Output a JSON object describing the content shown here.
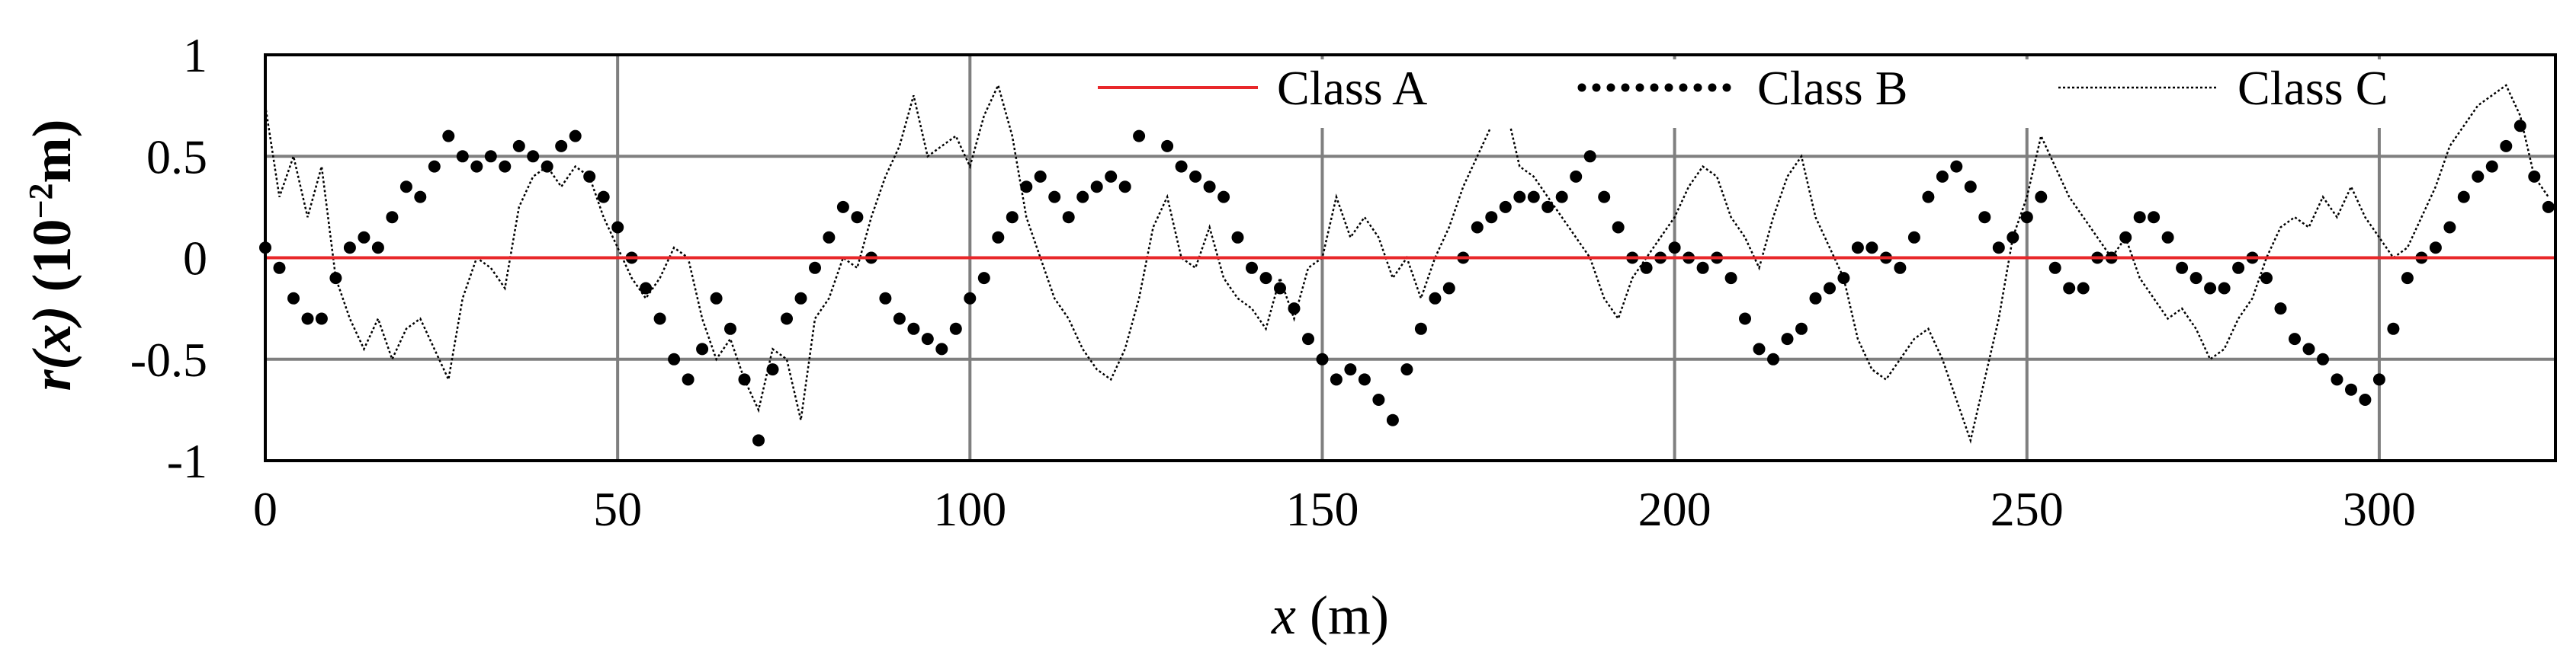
{
  "chart_data": {
    "type": "line",
    "xlabel": {
      "var": "x",
      "unit": " (m)"
    },
    "ylabel": {
      "var": "r(x)",
      "unit": " (10",
      "exp": "−2",
      "unit_end": "m)"
    },
    "xlim": [
      0,
      325
    ],
    "ylim": [
      -1,
      1
    ],
    "x_ticks": [
      0,
      50,
      100,
      150,
      200,
      250,
      300
    ],
    "x_tick_labels": [
      "0",
      "50",
      "100",
      "150",
      "200",
      "250",
      "300"
    ],
    "y_ticks": [
      1,
      0.5,
      0,
      -0.5,
      -1
    ],
    "y_tick_labels": [
      "1",
      "0.5",
      "0",
      "-0.5",
      "-1"
    ],
    "grid": true,
    "legend_position": "top",
    "colors": {
      "class_a": "#e8272a",
      "class_b": "#000000",
      "class_c": "#000000",
      "grid": "#7f7f7f"
    },
    "series": [
      {
        "name": "Class A",
        "style": "solid-red-line",
        "x": [
          0,
          325
        ],
        "y": [
          0,
          0
        ]
      },
      {
        "name": "Class B",
        "style": "dots",
        "x": [
          0,
          2,
          4,
          6,
          8,
          10,
          12,
          14,
          16,
          18,
          20,
          22,
          24,
          26,
          28,
          30,
          32,
          34,
          36,
          38,
          40,
          42,
          44,
          46,
          48,
          50,
          52,
          54,
          56,
          58,
          60,
          62,
          64,
          66,
          68,
          70,
          72,
          74,
          76,
          78,
          80,
          82,
          84,
          86,
          88,
          90,
          92,
          94,
          96,
          98,
          100,
          102,
          104,
          106,
          108,
          110,
          112,
          114,
          116,
          118,
          120,
          122,
          124,
          126,
          128,
          130,
          132,
          134,
          136,
          138,
          140,
          142,
          144,
          146,
          148,
          150,
          152,
          154,
          156,
          158,
          160,
          162,
          164,
          166,
          168,
          170,
          172,
          174,
          176,
          178,
          180,
          182,
          184,
          186,
          188,
          190,
          192,
          194,
          196,
          198,
          200,
          202,
          204,
          206,
          208,
          210,
          212,
          214,
          216,
          218,
          220,
          222,
          224,
          226,
          228,
          230,
          232,
          234,
          236,
          238,
          240,
          242,
          244,
          246,
          248,
          250,
          252,
          254,
          256,
          258,
          260,
          262,
          264,
          266,
          268,
          270,
          272,
          274,
          276,
          278,
          280,
          282,
          284,
          286,
          288,
          290,
          292,
          294,
          296,
          298,
          300,
          302,
          304,
          306,
          308,
          310,
          312,
          314,
          316,
          318,
          320,
          322,
          324
        ],
        "y": [
          0.05,
          -0.05,
          -0.2,
          -0.3,
          -0.3,
          -0.1,
          0.05,
          0.1,
          0.05,
          0.2,
          0.35,
          0.3,
          0.45,
          0.6,
          0.5,
          0.45,
          0.5,
          0.45,
          0.55,
          0.5,
          0.45,
          0.55,
          0.6,
          0.4,
          0.3,
          0.15,
          0.0,
          -0.15,
          -0.3,
          -0.5,
          -0.6,
          -0.45,
          -0.2,
          -0.35,
          -0.6,
          -0.9,
          -0.55,
          -0.3,
          -0.2,
          -0.05,
          0.1,
          0.25,
          0.2,
          0.0,
          -0.2,
          -0.3,
          -0.35,
          -0.4,
          -0.45,
          -0.35,
          -0.2,
          -0.1,
          0.1,
          0.2,
          0.35,
          0.4,
          0.3,
          0.2,
          0.3,
          0.35,
          0.4,
          0.35,
          0.6,
          0.7,
          0.55,
          0.45,
          0.4,
          0.35,
          0.3,
          0.1,
          -0.05,
          -0.1,
          -0.15,
          -0.25,
          -0.4,
          -0.5,
          -0.6,
          -0.55,
          -0.6,
          -0.7,
          -0.8,
          -0.55,
          -0.35,
          -0.2,
          -0.15,
          0.0,
          0.15,
          0.2,
          0.25,
          0.3,
          0.3,
          0.25,
          0.3,
          0.4,
          0.5,
          0.3,
          0.15,
          0.0,
          -0.05,
          0.0,
          0.05,
          0.0,
          -0.05,
          0.0,
          -0.1,
          -0.3,
          -0.45,
          -0.5,
          -0.4,
          -0.35,
          -0.2,
          -0.15,
          -0.1,
          0.05,
          0.05,
          0.0,
          -0.05,
          0.1,
          0.3,
          0.4,
          0.45,
          0.35,
          0.2,
          0.05,
          0.1,
          0.2,
          0.3,
          -0.05,
          -0.15,
          -0.15,
          0.0,
          0.0,
          0.1,
          0.2,
          0.2,
          0.1,
          -0.05,
          -0.1,
          -0.15,
          -0.15,
          -0.05,
          0.0,
          -0.1,
          -0.25,
          -0.4,
          -0.45,
          -0.5,
          -0.6,
          -0.65,
          -0.7,
          -0.6,
          -0.35,
          -0.1,
          0.0,
          0.05,
          0.15,
          0.3,
          0.4,
          0.45,
          0.55,
          0.65,
          0.4,
          0.25
        ]
      },
      {
        "name": "Class C",
        "style": "thin-dotted-line",
        "x": [
          0,
          2,
          4,
          6,
          8,
          10,
          12,
          14,
          16,
          18,
          20,
          22,
          24,
          26,
          28,
          30,
          32,
          34,
          36,
          38,
          40,
          42,
          44,
          46,
          48,
          50,
          52,
          54,
          56,
          58,
          60,
          62,
          64,
          66,
          68,
          70,
          72,
          74,
          76,
          78,
          80,
          82,
          84,
          86,
          88,
          90,
          92,
          94,
          96,
          98,
          100,
          102,
          104,
          106,
          108,
          110,
          112,
          114,
          116,
          118,
          120,
          122,
          124,
          126,
          128,
          130,
          132,
          134,
          136,
          138,
          140,
          142,
          144,
          146,
          148,
          150,
          152,
          154,
          156,
          158,
          160,
          162,
          164,
          166,
          168,
          170,
          172,
          174,
          176,
          178,
          180,
          182,
          184,
          186,
          188,
          190,
          192,
          194,
          196,
          198,
          200,
          202,
          204,
          206,
          208,
          210,
          212,
          214,
          216,
          218,
          220,
          222,
          224,
          226,
          228,
          230,
          232,
          234,
          236,
          238,
          240,
          242,
          244,
          246,
          248,
          250,
          252,
          254,
          256,
          258,
          260,
          262,
          264,
          266,
          268,
          270,
          272,
          274,
          276,
          278,
          280,
          282,
          284,
          286,
          288,
          290,
          292,
          294,
          296,
          298,
          300,
          302,
          304,
          306,
          308,
          310,
          312,
          314,
          316,
          318,
          320,
          322,
          324
        ],
        "y": [
          0.75,
          0.3,
          0.5,
          0.2,
          0.45,
          -0.1,
          -0.3,
          -0.45,
          -0.3,
          -0.5,
          -0.35,
          -0.3,
          -0.45,
          -0.6,
          -0.2,
          0.0,
          -0.05,
          -0.15,
          0.25,
          0.4,
          0.45,
          0.35,
          0.45,
          0.4,
          0.2,
          0.05,
          -0.1,
          -0.2,
          -0.1,
          0.05,
          0.0,
          -0.3,
          -0.5,
          -0.4,
          -0.6,
          -0.75,
          -0.45,
          -0.5,
          -0.8,
          -0.3,
          -0.2,
          0.0,
          -0.05,
          0.2,
          0.4,
          0.55,
          0.8,
          0.5,
          0.55,
          0.6,
          0.45,
          0.7,
          0.85,
          0.6,
          0.2,
          0.0,
          -0.2,
          -0.3,
          -0.45,
          -0.55,
          -0.6,
          -0.45,
          -0.2,
          0.15,
          0.3,
          0.0,
          -0.05,
          0.15,
          -0.1,
          -0.2,
          -0.25,
          -0.35,
          -0.1,
          -0.3,
          -0.05,
          0.0,
          0.3,
          0.1,
          0.2,
          0.1,
          -0.1,
          0.0,
          -0.2,
          0.0,
          0.15,
          0.35,
          0.5,
          0.65,
          0.75,
          0.45,
          0.4,
          0.3,
          0.2,
          0.1,
          0.0,
          -0.2,
          -0.3,
          -0.1,
          0.0,
          0.1,
          0.2,
          0.35,
          0.45,
          0.4,
          0.2,
          0.1,
          -0.05,
          0.2,
          0.4,
          0.5,
          0.2,
          0.05,
          -0.1,
          -0.4,
          -0.55,
          -0.6,
          -0.5,
          -0.4,
          -0.35,
          -0.5,
          -0.7,
          -0.9,
          -0.6,
          -0.3,
          0.1,
          0.3,
          0.6,
          0.45,
          0.3,
          0.2,
          0.1,
          0.0,
          0.1,
          -0.1,
          -0.2,
          -0.3,
          -0.25,
          -0.35,
          -0.5,
          -0.45,
          -0.3,
          -0.2,
          0.0,
          0.15,
          0.2,
          0.15,
          0.3,
          0.2,
          0.35,
          0.2,
          0.1,
          0.0,
          0.05,
          0.2,
          0.35,
          0.55,
          0.65,
          0.75,
          0.8,
          0.85,
          0.7,
          0.4,
          0.3
        ]
      }
    ]
  }
}
